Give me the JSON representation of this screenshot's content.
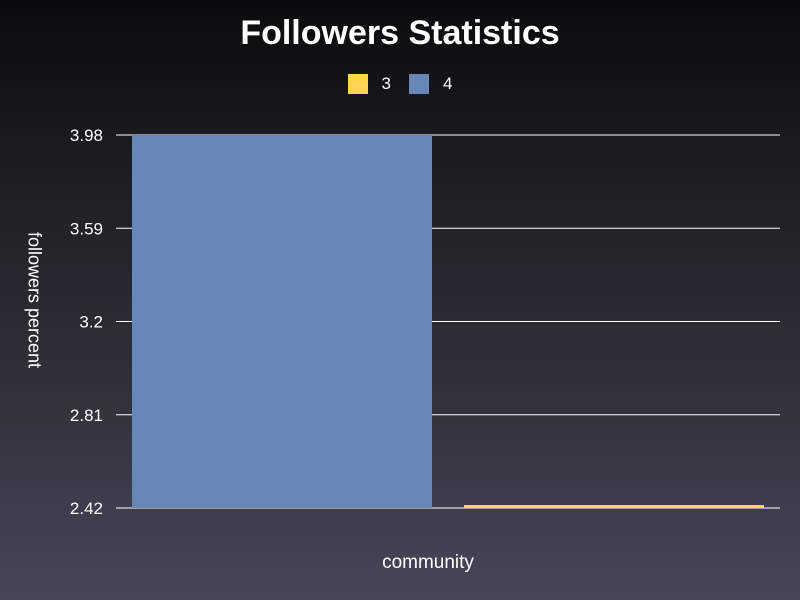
{
  "chart_data": {
    "type": "bar",
    "title": "Followers Statistics",
    "xlabel": "community",
    "ylabel": "followers percent",
    "ylim": [
      2.42,
      3.98
    ],
    "yticks": [
      "2.42",
      "2.81",
      "3.2",
      "3.59",
      "3.98"
    ],
    "categories": [
      "community"
    ],
    "legend_position": "top-center",
    "grid": true,
    "series": [
      {
        "name": "3",
        "color": "#ffd54f",
        "values": [
          2.42
        ]
      },
      {
        "name": "4",
        "color": "#6788b7",
        "values": [
          3.98
        ]
      }
    ],
    "bar_order": [
      "4",
      "3"
    ]
  }
}
